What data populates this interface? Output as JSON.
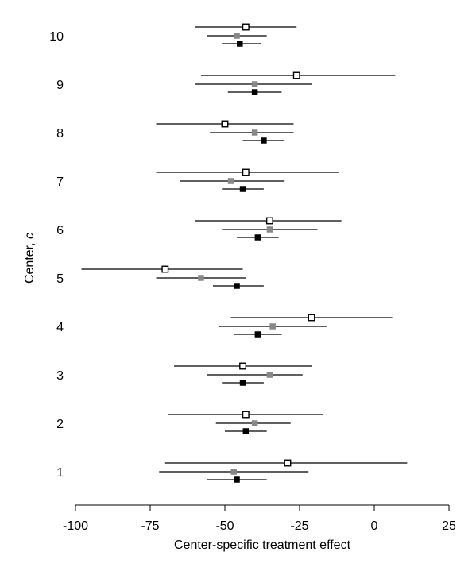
{
  "chart_data": {
    "type": "forest",
    "xlabel": "Center-specific treatment effect",
    "ylabel_text": "Center, ",
    "ylabel_symbol": "c",
    "xlim": [
      -102,
      27
    ],
    "x_ticks": [
      -100,
      -75,
      -50,
      -25,
      0,
      25
    ],
    "categories": [
      "1",
      "2",
      "3",
      "4",
      "5",
      "6",
      "7",
      "8",
      "9",
      "10"
    ],
    "grid": false,
    "legend": "none",
    "colors": {
      "series_1": "#ffffff",
      "series_2": "#888888",
      "series_3": "#000000",
      "outline": "#000000"
    },
    "series": [
      {
        "marker": "hollow-square",
        "estimates": [
          -29,
          -43,
          -44,
          -21,
          -70,
          -35,
          -43,
          -50,
          -26,
          -43
        ],
        "lower": [
          -70,
          -69,
          -67,
          -48,
          -98,
          -60,
          -73,
          -73,
          -58,
          -60
        ],
        "upper": [
          11,
          -17,
          -21,
          6,
          -44,
          -11,
          -12,
          -27,
          7,
          -26
        ]
      },
      {
        "marker": "gray-square",
        "estimates": [
          -47,
          -40,
          -35,
          -34,
          -58,
          -35,
          -48,
          -40,
          -40,
          -46
        ],
        "lower": [
          -72,
          -53,
          -56,
          -52,
          -73,
          -51,
          -65,
          -55,
          -60,
          -56
        ],
        "upper": [
          -22,
          -28,
          -24,
          -16,
          -43,
          -19,
          -30,
          -27,
          -21,
          -36
        ]
      },
      {
        "marker": "black-square",
        "estimates": [
          -46,
          -43,
          -44,
          -39,
          -46,
          -39,
          -44,
          -37,
          -40,
          -45
        ],
        "lower": [
          -56,
          -50,
          -51,
          -47,
          -54,
          -46,
          -51,
          -44,
          -49,
          -51
        ],
        "upper": [
          -36,
          -36,
          -37,
          -31,
          -37,
          -32,
          -37,
          -30,
          -31,
          -38
        ]
      }
    ]
  }
}
